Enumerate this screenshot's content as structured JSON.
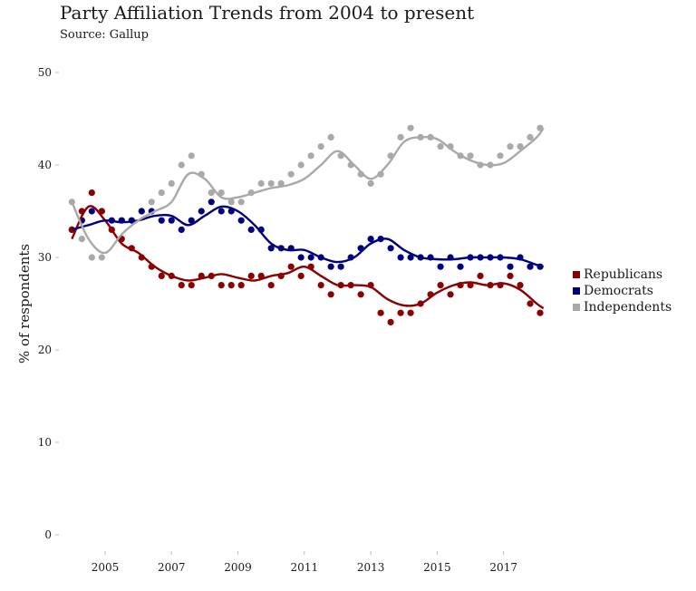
{
  "chart_data": {
    "type": "scatter",
    "title": "Party Affiliation Trends from 2004 to present",
    "subtitle": "Source: Gallup",
    "xlabel": "",
    "ylabel": "% of respondents",
    "xlim": [
      2003.8,
      2018.4
    ],
    "ylim": [
      0,
      50
    ],
    "x_ticks": [
      "2005",
      "2007",
      "2009",
      "2011",
      "2013",
      "2015",
      "2017"
    ],
    "y_ticks": [
      "0",
      "10",
      "20",
      "30",
      "40",
      "50"
    ],
    "grid": false,
    "legend_position": "right",
    "series": [
      {
        "name": "Republicans",
        "color": "#8b0000",
        "x": [
          2004.0,
          2004.3,
          2004.6,
          2004.9,
          2005.2,
          2005.5,
          2005.8,
          2006.1,
          2006.4,
          2006.7,
          2007.0,
          2007.3,
          2007.6,
          2007.9,
          2008.2,
          2008.5,
          2008.8,
          2009.1,
          2009.4,
          2009.7,
          2010.0,
          2010.3,
          2010.6,
          2010.9,
          2011.2,
          2011.5,
          2011.8,
          2012.1,
          2012.4,
          2012.7,
          2013.0,
          2013.3,
          2013.6,
          2013.9,
          2014.2,
          2014.5,
          2014.8,
          2015.1,
          2015.4,
          2015.7,
          2016.0,
          2016.3,
          2016.6,
          2016.9,
          2017.2,
          2017.5,
          2017.8,
          2018.1
        ],
        "y": [
          33,
          35,
          37,
          35,
          33,
          32,
          31,
          30,
          29,
          28,
          28,
          27,
          27,
          28,
          28,
          27,
          27,
          27,
          28,
          28,
          27,
          28,
          29,
          28,
          29,
          27,
          26,
          27,
          27,
          26,
          27,
          24,
          23,
          24,
          24,
          25,
          26,
          27,
          26,
          27,
          27,
          28,
          27,
          27,
          28,
          27,
          25,
          24
        ],
        "trend_x": [
          2004.0,
          2004.5,
          2005.0,
          2005.5,
          2006.0,
          2006.5,
          2007.0,
          2007.5,
          2008.0,
          2008.5,
          2009.0,
          2009.5,
          2010.0,
          2010.5,
          2011.0,
          2011.5,
          2012.0,
          2012.5,
          2013.0,
          2013.5,
          2014.0,
          2014.5,
          2015.0,
          2015.5,
          2016.0,
          2016.5,
          2017.0,
          2017.5,
          2018.0,
          2018.2
        ],
        "trend_y": [
          32,
          35.5,
          34,
          31.5,
          30.5,
          29,
          28,
          27.5,
          27.8,
          28.2,
          27.8,
          27.5,
          28,
          28.3,
          29,
          28,
          27,
          27,
          26.8,
          25.5,
          24.8,
          25,
          26.2,
          27,
          27.3,
          27,
          27.2,
          26.5,
          25,
          24.5
        ]
      },
      {
        "name": "Democrats",
        "color": "#00007f",
        "x": [
          2004.0,
          2004.3,
          2004.6,
          2004.9,
          2005.2,
          2005.5,
          2005.8,
          2006.1,
          2006.4,
          2006.7,
          2007.0,
          2007.3,
          2007.6,
          2007.9,
          2008.2,
          2008.5,
          2008.8,
          2009.1,
          2009.4,
          2009.7,
          2010.0,
          2010.3,
          2010.6,
          2010.9,
          2011.2,
          2011.5,
          2011.8,
          2012.1,
          2012.4,
          2012.7,
          2013.0,
          2013.3,
          2013.6,
          2013.9,
          2014.2,
          2014.5,
          2014.8,
          2015.1,
          2015.4,
          2015.7,
          2016.0,
          2016.3,
          2016.6,
          2016.9,
          2017.2,
          2017.5,
          2017.8,
          2018.1
        ],
        "y": [
          33,
          34,
          35,
          35,
          34,
          34,
          34,
          35,
          35,
          34,
          34,
          33,
          34,
          35,
          36,
          35,
          35,
          34,
          33,
          33,
          31,
          31,
          31,
          30,
          30,
          30,
          29,
          29,
          30,
          31,
          32,
          32,
          31,
          30,
          30,
          30,
          30,
          29,
          30,
          29,
          30,
          30,
          30,
          30,
          29,
          30,
          29,
          29
        ],
        "trend_x": [
          2004.0,
          2004.5,
          2005.0,
          2005.5,
          2006.0,
          2006.5,
          2007.0,
          2007.5,
          2008.0,
          2008.5,
          2009.0,
          2009.5,
          2010.0,
          2010.5,
          2011.0,
          2011.5,
          2012.0,
          2012.5,
          2013.0,
          2013.5,
          2014.0,
          2014.5,
          2015.0,
          2015.5,
          2016.0,
          2016.5,
          2017.0,
          2017.5,
          2018.0,
          2018.2
        ],
        "trend_y": [
          33,
          33.5,
          34,
          33.8,
          34,
          34.5,
          34.5,
          33.5,
          34.5,
          35.5,
          35,
          33.5,
          31.5,
          30.8,
          30.8,
          30,
          29.5,
          30,
          31.5,
          32,
          30.8,
          30,
          29.8,
          29.8,
          30,
          30,
          30,
          29.8,
          29.2,
          29
        ]
      },
      {
        "name": "Independents",
        "color": "#a9a9a9",
        "x": [
          2004.0,
          2004.3,
          2004.6,
          2004.9,
          2005.2,
          2005.5,
          2005.8,
          2006.1,
          2006.4,
          2006.7,
          2007.0,
          2007.3,
          2007.6,
          2007.9,
          2008.2,
          2008.5,
          2008.8,
          2009.1,
          2009.4,
          2009.7,
          2010.0,
          2010.3,
          2010.6,
          2010.9,
          2011.2,
          2011.5,
          2011.8,
          2012.1,
          2012.4,
          2012.7,
          2013.0,
          2013.3,
          2013.6,
          2013.9,
          2014.2,
          2014.5,
          2014.8,
          2015.1,
          2015.4,
          2015.7,
          2016.0,
          2016.3,
          2016.6,
          2016.9,
          2017.2,
          2017.5,
          2017.8,
          2018.1
        ],
        "y": [
          36,
          32,
          30,
          30,
          33,
          34,
          34,
          35,
          36,
          37,
          38,
          40,
          41,
          39,
          37,
          37,
          36,
          36,
          37,
          38,
          38,
          38,
          39,
          40,
          41,
          42,
          43,
          41,
          40,
          39,
          38,
          39,
          41,
          43,
          44,
          43,
          43,
          42,
          42,
          41,
          41,
          40,
          40,
          41,
          42,
          42,
          43,
          44
        ],
        "trend_x": [
          2004.0,
          2004.5,
          2005.0,
          2005.5,
          2006.0,
          2006.5,
          2007.0,
          2007.5,
          2008.0,
          2008.5,
          2009.0,
          2009.5,
          2010.0,
          2010.5,
          2011.0,
          2011.5,
          2012.0,
          2012.5,
          2013.0,
          2013.5,
          2014.0,
          2014.5,
          2015.0,
          2015.5,
          2016.0,
          2016.5,
          2017.0,
          2017.5,
          2018.0,
          2018.2
        ],
        "trend_y": [
          36,
          32,
          30.5,
          32.5,
          34,
          35,
          36,
          39,
          38.5,
          36.5,
          36.5,
          37,
          37.5,
          37.8,
          38.5,
          40,
          41.5,
          40,
          38.5,
          40,
          42.5,
          43,
          42.8,
          41.5,
          40.5,
          40,
          40.2,
          41.5,
          43,
          44
        ]
      }
    ]
  }
}
